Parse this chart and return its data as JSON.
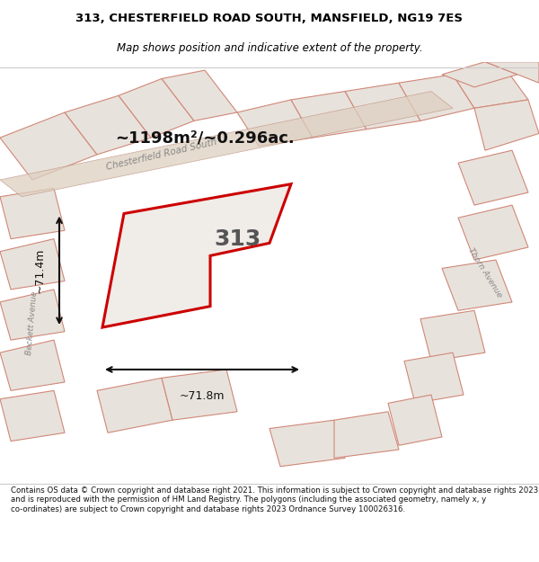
{
  "title_line1": "313, CHESTERFIELD ROAD SOUTH, MANSFIELD, NG19 7ES",
  "title_line2": "Map shows position and indicative extent of the property.",
  "area_text": "~1198m²/~0.296ac.",
  "label_313": "313",
  "dim_horizontal": "~71.8m",
  "dim_vertical": "~71.4m",
  "footer_text": "Contains OS data © Crown copyright and database right 2021. This information is subject to Crown copyright and database rights 2023 and is reproduced with the permission of HM Land Registry. The polygons (including the associated geometry, namely x, y co-ordinates) are subject to Crown copyright and database rights 2023 Ordnance Survey 100026316.",
  "map_bg": "#f0edea",
  "plot_outline_color": "#cc0000",
  "street_label1": "Chesterfield Road South",
  "street_label2": "Thorn Avenue",
  "street_label3": "Beckett Avenue",
  "fig_width": 6.0,
  "fig_height": 6.25,
  "bg_poly_edge": "#d08878",
  "bg_poly_face": "#e8e2dc",
  "road_face": "#ddd0c0",
  "road_edge": "#c09080"
}
